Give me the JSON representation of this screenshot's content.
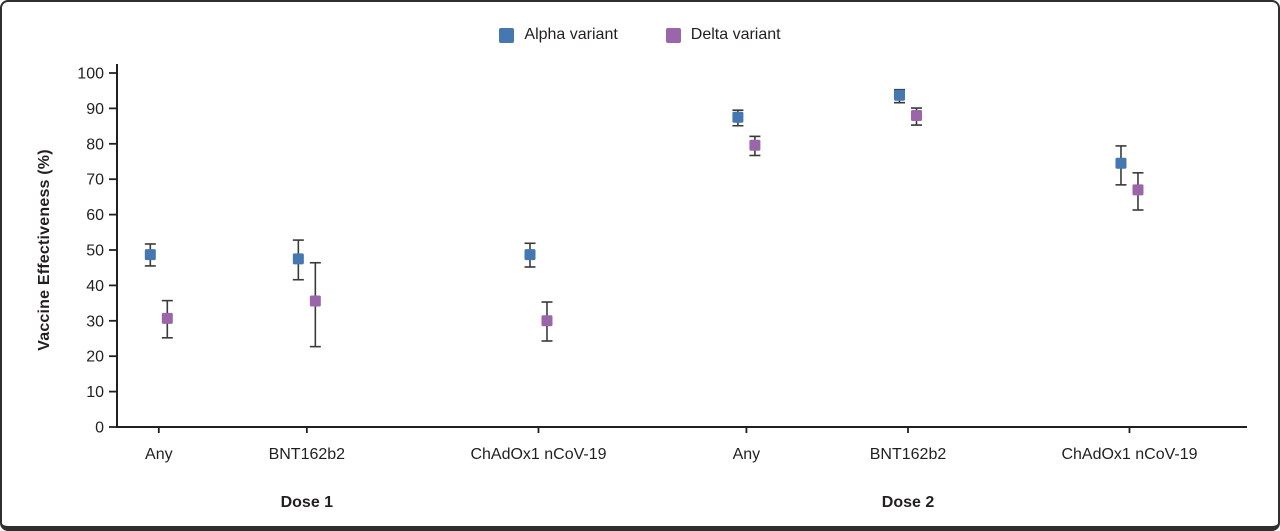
{
  "chart_data": {
    "type": "scatter",
    "title": "",
    "ylabel": "Vaccine Effectiveness (%)",
    "ylim": [
      0,
      100
    ],
    "ytick_step": 10,
    "grid": false,
    "legend_position": "top-center",
    "categories": [
      "Any",
      "BNT162b2",
      "ChAdOx1 nCoV-19",
      "Any",
      "BNT162b2",
      "ChAdOx1 nCoV-19"
    ],
    "group_labels": [
      {
        "label": "Dose 1",
        "category_indices": [
          0,
          1,
          2
        ]
      },
      {
        "label": "Dose 2",
        "category_indices": [
          3,
          4,
          5
        ]
      }
    ],
    "series": [
      {
        "name": "Alpha variant",
        "color": "#4577b1",
        "marker": "square",
        "values": [
          48.7,
          47.5,
          48.7,
          87.5,
          93.7,
          74.5
        ],
        "ci_low": [
          45.5,
          41.6,
          45.2,
          85.1,
          91.6,
          68.4
        ],
        "ci_high": [
          51.7,
          52.8,
          51.9,
          89.5,
          95.3,
          79.4
        ]
      },
      {
        "name": "Delta variant",
        "color": "#9b66a9",
        "marker": "square",
        "values": [
          30.7,
          35.6,
          30.0,
          79.6,
          88.0,
          67.0
        ],
        "ci_low": [
          25.2,
          22.7,
          24.3,
          76.7,
          85.3,
          61.3
        ],
        "ci_high": [
          35.7,
          46.4,
          35.3,
          82.1,
          90.1,
          71.8
        ]
      }
    ],
    "error_bar_color": "#3a3a3a",
    "axis_color": "#231f20",
    "text_color": "#231f20"
  }
}
